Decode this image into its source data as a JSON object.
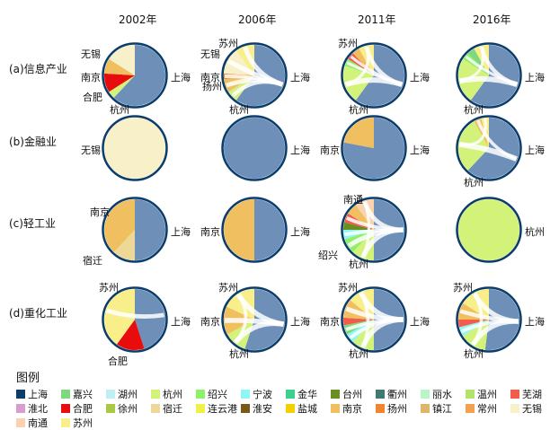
{
  "years": [
    "2002年",
    "2006年",
    "2011年",
    "2016年"
  ],
  "rows": [
    {
      "label": "(a)信息产业"
    },
    {
      "label": "(b)金融业"
    },
    {
      "label": "(c)轻工业"
    },
    {
      "label": "(d)重化工业"
    }
  ],
  "colors": {
    "上海": "#0b3d6b",
    "上海_fill": "#6e8fb8",
    "嘉兴": "#7ed97e",
    "湖州": "#bfeff2",
    "杭州": "#d2f27a",
    "绍兴": "#8ef06a",
    "宁波": "#8ef7f5",
    "金华": "#3bd18c",
    "台州": "#6b8e23",
    "衢州": "#3e7b6e",
    "丽水": "#b8f5c8",
    "温州": "#b2e36b",
    "芜湖": "#f35b4b",
    "淮北": "#d99ed0",
    "合肥": "#e80c0c",
    "徐州": "#a7c943",
    "宿迁": "#eed897",
    "连云港": "#f0f048",
    "淮安": "#7a5a1a",
    "盐城": "#f5d000",
    "南京": "#f0c060",
    "扬州": "#f0842f",
    "镇江": "#dfb56a",
    "常州": "#f5a050",
    "无锡": "#f7f0c8",
    "南通": "#f9d2b0",
    "苏州": "#f8ee8a"
  },
  "panels": [
    {
      "row": 0,
      "col": 0,
      "labels": [
        "无锡",
        "南京",
        "合肥",
        "上海",
        "杭州"
      ],
      "sectors": [
        {
          "city": "上海",
          "share": 0.62
        },
        {
          "city": "杭州",
          "share": 0.04
        },
        {
          "city": "合肥",
          "share": 0.1
        },
        {
          "city": "南京",
          "share": 0.08
        },
        {
          "city": "无锡",
          "share": 0.16
        }
      ],
      "chords": []
    },
    {
      "row": 0,
      "col": 1,
      "labels": [
        "苏州",
        "无锡",
        "扬州",
        "南京",
        "杭州",
        "上海"
      ],
      "sectors": [
        {
          "city": "上海",
          "share": 0.6
        },
        {
          "city": "杭州",
          "share": 0.06
        },
        {
          "city": "南京",
          "share": 0.07
        },
        {
          "city": "扬州",
          "share": 0.03
        },
        {
          "city": "无锡",
          "share": 0.14
        },
        {
          "city": "苏州",
          "share": 0.1
        }
      ],
      "chords": [
        [
          0,
          4,
          0.8
        ],
        [
          0,
          5,
          0.8
        ],
        [
          0,
          2,
          0.7
        ],
        [
          0,
          1,
          0.6
        ],
        [
          0,
          3,
          0.5
        ]
      ]
    },
    {
      "row": 0,
      "col": 2,
      "labels": [
        "苏州",
        "上海",
        "杭州"
      ],
      "sectors": [
        {
          "city": "上海",
          "share": 0.6
        },
        {
          "city": "杭州",
          "share": 0.2
        },
        {
          "city": "绍兴",
          "share": 0.04
        },
        {
          "city": "芜湖",
          "share": 0.04
        },
        {
          "city": "南京",
          "share": 0.04
        },
        {
          "city": "苏州",
          "share": 0.08
        }
      ],
      "chords": [
        [
          0,
          1,
          1.0
        ],
        [
          0,
          5,
          0.6
        ],
        [
          0,
          2,
          0.3
        ],
        [
          0,
          3,
          0.3
        ],
        [
          1,
          5,
          0.3
        ]
      ]
    },
    {
      "row": 0,
      "col": 3,
      "labels": [
        "上海",
        "杭州"
      ],
      "sectors": [
        {
          "city": "上海",
          "share": 0.6
        },
        {
          "city": "杭州",
          "share": 0.24
        },
        {
          "city": "绍兴",
          "share": 0.04
        },
        {
          "city": "嘉兴",
          "share": 0.04
        },
        {
          "city": "苏州",
          "share": 0.08
        }
      ],
      "chords": [
        [
          0,
          1,
          1.0
        ],
        [
          0,
          4,
          0.6
        ],
        [
          0,
          2,
          0.3
        ],
        [
          1,
          4,
          0.3
        ]
      ]
    },
    {
      "row": 1,
      "col": 0,
      "labels": [
        "无锡"
      ],
      "sectors": [
        {
          "city": "无锡",
          "share": 1.0
        }
      ],
      "chords": []
    },
    {
      "row": 1,
      "col": 1,
      "labels": [
        "上海"
      ],
      "sectors": [
        {
          "city": "上海",
          "share": 1.0
        }
      ],
      "chords": []
    },
    {
      "row": 1,
      "col": 2,
      "labels": [
        "南京",
        "上海"
      ],
      "sectors": [
        {
          "city": "上海",
          "share": 0.78
        },
        {
          "city": "南京",
          "share": 0.22
        }
      ],
      "chords": []
    },
    {
      "row": 1,
      "col": 3,
      "labels": [
        "上海",
        "杭州"
      ],
      "sectors": [
        {
          "city": "上海",
          "share": 0.62
        },
        {
          "city": "杭州",
          "share": 0.3
        },
        {
          "city": "南京",
          "share": 0.04
        },
        {
          "city": "苏州",
          "share": 0.04
        }
      ],
      "chords": [
        [
          0,
          1,
          1.0
        ],
        [
          0,
          2,
          0.4
        ],
        [
          1,
          3,
          0.3
        ]
      ]
    },
    {
      "row": 2,
      "col": 0,
      "labels": [
        "南京",
        "宿迁",
        "上海"
      ],
      "sectors": [
        {
          "city": "上海",
          "share": 0.5
        },
        {
          "city": "宿迁",
          "share": 0.12
        },
        {
          "city": "南京",
          "share": 0.38
        }
      ],
      "chords": []
    },
    {
      "row": 2,
      "col": 1,
      "labels": [
        "南京",
        "上海"
      ],
      "sectors": [
        {
          "city": "上海",
          "share": 0.5
        },
        {
          "city": "南京",
          "share": 0.5
        }
      ],
      "chords": []
    },
    {
      "row": 2,
      "col": 2,
      "labels": [
        "南通",
        "绍兴",
        "杭州"
      ],
      "sectors": [
        {
          "city": "上海",
          "share": 0.5
        },
        {
          "city": "杭州",
          "share": 0.12
        },
        {
          "city": "绍兴",
          "share": 0.08
        },
        {
          "city": "宁波",
          "share": 0.05
        },
        {
          "city": "台州",
          "share": 0.04
        },
        {
          "city": "芜湖",
          "share": 0.05
        },
        {
          "city": "南京",
          "share": 0.06
        },
        {
          "city": "南通",
          "share": 0.1
        }
      ],
      "chords": [
        [
          0,
          1,
          0.9
        ],
        [
          0,
          2,
          0.8
        ],
        [
          0,
          7,
          0.7
        ],
        [
          0,
          3,
          0.5
        ],
        [
          0,
          5,
          0.5
        ],
        [
          1,
          7,
          0.3
        ]
      ]
    },
    {
      "row": 2,
      "col": 3,
      "labels": [
        "杭州"
      ],
      "sectors": [
        {
          "city": "杭州",
          "share": 1.0
        }
      ],
      "chords": []
    },
    {
      "row": 3,
      "col": 0,
      "labels": [
        "苏州",
        "上海",
        "合肥"
      ],
      "sectors": [
        {
          "city": "上海",
          "share": 0.45
        },
        {
          "city": "合肥",
          "share": 0.15
        },
        {
          "city": "苏州",
          "share": 0.4
        }
      ],
      "chords": [
        [
          0,
          2,
          0.7
        ]
      ]
    },
    {
      "row": 3,
      "col": 1,
      "labels": [
        "苏州",
        "南京",
        "上海",
        "杭州"
      ],
      "sectors": [
        {
          "city": "上海",
          "share": 0.55
        },
        {
          "city": "杭州",
          "share": 0.12
        },
        {
          "city": "南京",
          "share": 0.15
        },
        {
          "city": "苏州",
          "share": 0.18
        }
      ],
      "chords": [
        [
          0,
          1,
          0.9
        ],
        [
          0,
          2,
          0.9
        ],
        [
          0,
          3,
          0.9
        ],
        [
          1,
          3,
          0.4
        ]
      ]
    },
    {
      "row": 3,
      "col": 2,
      "labels": [
        "苏州",
        "南京",
        "上海",
        "杭州"
      ],
      "sectors": [
        {
          "city": "上海",
          "share": 0.5
        },
        {
          "city": "杭州",
          "share": 0.12
        },
        {
          "city": "宁波",
          "share": 0.05
        },
        {
          "city": "嘉兴",
          "share": 0.05
        },
        {
          "city": "芜湖",
          "share": 0.04
        },
        {
          "city": "南京",
          "share": 0.1
        },
        {
          "city": "苏州",
          "share": 0.14
        }
      ],
      "chords": [
        [
          0,
          1,
          0.9
        ],
        [
          0,
          5,
          0.8
        ],
        [
          0,
          6,
          0.9
        ],
        [
          0,
          2,
          0.5
        ],
        [
          0,
          3,
          0.5
        ],
        [
          1,
          6,
          0.4
        ]
      ]
    },
    {
      "row": 3,
      "col": 3,
      "labels": [
        "苏州",
        "上海",
        "杭州"
      ],
      "sectors": [
        {
          "city": "上海",
          "share": 0.52
        },
        {
          "city": "杭州",
          "share": 0.14
        },
        {
          "city": "宁波",
          "share": 0.05
        },
        {
          "city": "芜湖",
          "share": 0.04
        },
        {
          "city": "南京",
          "share": 0.09
        },
        {
          "city": "苏州",
          "share": 0.16
        }
      ],
      "chords": [
        [
          0,
          1,
          0.9
        ],
        [
          0,
          5,
          0.8
        ],
        [
          0,
          4,
          0.6
        ],
        [
          0,
          2,
          0.5
        ],
        [
          1,
          5,
          0.4
        ]
      ]
    }
  ],
  "legend": {
    "title": "图例",
    "items": [
      "上海",
      "嘉兴",
      "湖州",
      "杭州",
      "绍兴",
      "宁波",
      "金华",
      "台州",
      "衢州",
      "丽水",
      "温州",
      "芜湖",
      "淮北",
      "合肥",
      "徐州",
      "宿迁",
      "连云港",
      "淮安",
      "盐城",
      "南京",
      "扬州",
      "镇江",
      "常州",
      "无锡",
      "南通",
      "苏州"
    ]
  }
}
